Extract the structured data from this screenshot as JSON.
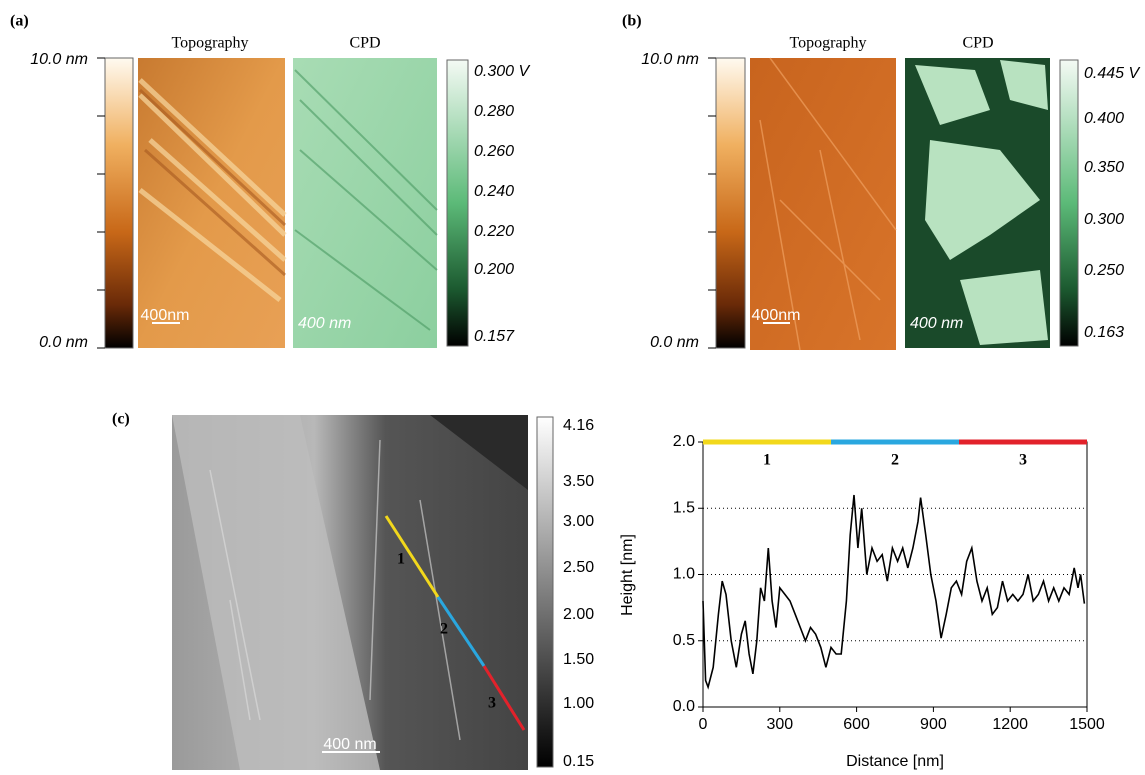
{
  "panels": {
    "a": {
      "label": "(a)",
      "topography_title": "Topography",
      "cpd_title": "CPD",
      "height_max": "10.0 nm",
      "height_min": "0.0 nm",
      "topo_scale": "400nm",
      "cpd_scale": "400 nm",
      "cpd_scale_labels": [
        "0.300 V",
        "0.280",
        "0.260",
        "0.240",
        "0.220",
        "0.200",
        "0.157"
      ]
    },
    "b": {
      "label": "(b)",
      "topography_title": "Topography",
      "cpd_title": "CPD",
      "height_max": "10.0 nm",
      "height_min": "0.0 nm",
      "topo_scale": "400nm",
      "cpd_scale": "400 nm",
      "cpd_scale_labels": [
        "0.445 V",
        "0.400",
        "0.350",
        "0.300",
        "0.250",
        "0.163"
      ]
    },
    "c": {
      "label": "(c)",
      "image_scale": "400 nm",
      "line_labels": [
        "1",
        "2",
        "3"
      ],
      "height_scale_labels": [
        "4.16",
        "3.50",
        "3.00",
        "2.50",
        "2.00",
        "1.50",
        "1.00",
        "0.15"
      ]
    }
  },
  "chart_data": {
    "type": "line",
    "x_label": "Distance [nm]",
    "y_label": "Height [nm]",
    "color": "#000000",
    "x": [
      0,
      10,
      20,
      40,
      60,
      75,
      90,
      110,
      130,
      150,
      165,
      180,
      195,
      210,
      225,
      240,
      255,
      270,
      285,
      300,
      320,
      340,
      360,
      380,
      400,
      420,
      440,
      460,
      480,
      500,
      520,
      540,
      560,
      575,
      590,
      605,
      620,
      640,
      660,
      680,
      700,
      720,
      740,
      760,
      780,
      800,
      820,
      840,
      850,
      870,
      890,
      910,
      930,
      950,
      970,
      990,
      1010,
      1030,
      1050,
      1070,
      1090,
      1110,
      1130,
      1150,
      1170,
      1190,
      1210,
      1230,
      1250,
      1270,
      1290,
      1310,
      1330,
      1350,
      1370,
      1390,
      1410,
      1430,
      1450,
      1465,
      1475,
      1490
    ],
    "values": [
      0.8,
      0.2,
      0.15,
      0.3,
      0.7,
      0.95,
      0.85,
      0.5,
      0.3,
      0.55,
      0.65,
      0.4,
      0.25,
      0.5,
      0.9,
      0.8,
      1.2,
      0.8,
      0.6,
      0.9,
      0.85,
      0.8,
      0.7,
      0.6,
      0.5,
      0.6,
      0.55,
      0.45,
      0.3,
      0.45,
      0.4,
      0.4,
      0.8,
      1.3,
      1.6,
      1.2,
      1.5,
      1.0,
      1.2,
      1.1,
      1.15,
      0.95,
      1.2,
      1.1,
      1.2,
      1.05,
      1.2,
      1.4,
      1.58,
      1.3,
      1.0,
      0.8,
      0.52,
      0.7,
      0.9,
      0.95,
      0.85,
      1.1,
      1.2,
      0.95,
      0.8,
      0.9,
      0.7,
      0.75,
      0.95,
      0.8,
      0.85,
      0.8,
      0.85,
      1.0,
      0.8,
      0.85,
      0.95,
      0.8,
      0.9,
      0.8,
      0.9,
      0.85,
      1.05,
      0.9,
      1.0,
      0.78
    ],
    "segments": [
      {
        "label": "1",
        "color": "#f2d81c",
        "start": 0,
        "end": 500
      },
      {
        "label": "2",
        "color": "#2aa7df",
        "start": 500,
        "end": 1000
      },
      {
        "label": "3",
        "color": "#e2222b",
        "start": 1000,
        "end": 1500
      }
    ],
    "xlim": [
      0,
      1500
    ],
    "ylim": [
      0,
      2
    ],
    "xticks": [
      0,
      300,
      600,
      900,
      1200,
      1500
    ],
    "yticks": [
      {
        "value": 0,
        "label": "0.0"
      },
      {
        "value": 0.5,
        "label": "0.5"
      },
      {
        "value": 1,
        "label": "1.0"
      },
      {
        "value": 1.5,
        "label": "1.5"
      },
      {
        "value": 2,
        "label": "2.0"
      }
    ],
    "grid": true
  }
}
